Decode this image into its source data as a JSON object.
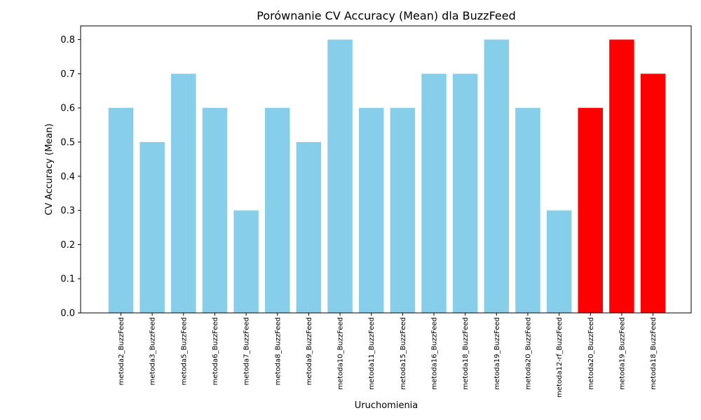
{
  "chart_data": {
    "type": "bar",
    "title": "Porównanie CV Accuracy (Mean) dla BuzzFeed",
    "xlabel": "Uruchomienia",
    "ylabel": "CV Accuracy (Mean)",
    "ylim": [
      0,
      0.84
    ],
    "yticks": [
      "0.0",
      "0.1",
      "0.2",
      "0.3",
      "0.4",
      "0.5",
      "0.6",
      "0.7",
      "0.8"
    ],
    "grid": false,
    "categories": [
      "metoda2_BuzzFeed",
      "metoda3_BuzzFeed",
      "metoda5_BuzzFeed",
      "metoda6_BuzzFeed",
      "metoda7_BuzzFeed",
      "metoda8_BuzzFeed",
      "metoda9_BuzzFeed",
      "metoda10_BuzzFeed",
      "metoda11_BuzzFeed",
      "metoda15_BuzzFeed",
      "metoda16_BuzzFeed",
      "metoda18_BuzzFeed",
      "metoda19_BuzzFeed",
      "metoda20_BuzzFeed",
      "metoda12-rf_BuzzFeed",
      "metoda20_BuzzFeed",
      "metoda19_BuzzFeed",
      "metoda18_BuzzFeed"
    ],
    "values": [
      0.6,
      0.5,
      0.7,
      0.6,
      0.3,
      0.6,
      0.5,
      0.8,
      0.6,
      0.6,
      0.7,
      0.7,
      0.8,
      0.6,
      0.3,
      0.6,
      0.8,
      0.7
    ],
    "colors": [
      "#87ceeb",
      "#87ceeb",
      "#87ceeb",
      "#87ceeb",
      "#87ceeb",
      "#87ceeb",
      "#87ceeb",
      "#87ceeb",
      "#87ceeb",
      "#87ceeb",
      "#87ceeb",
      "#87ceeb",
      "#87ceeb",
      "#87ceeb",
      "#87ceeb",
      "#ff0000",
      "#ff0000",
      "#ff0000"
    ]
  }
}
